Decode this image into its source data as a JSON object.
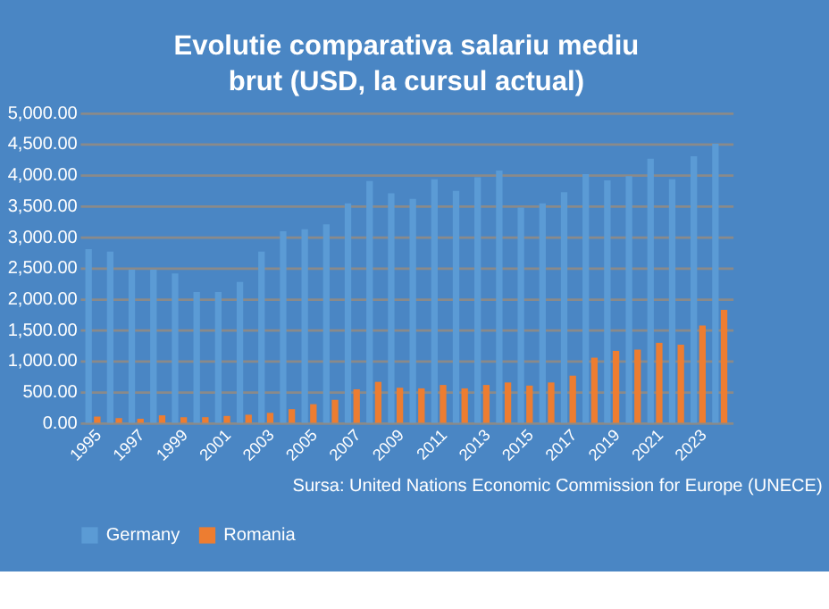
{
  "chart_data": {
    "type": "bar",
    "title": "Evolutie comparativa salariu mediu brut (USD, la cursul actual)",
    "categories": [
      "1995",
      null,
      "1997",
      null,
      "1999",
      null,
      "2001",
      null,
      "2003",
      null,
      "2005",
      null,
      "2007",
      null,
      "2009",
      null,
      "2011",
      null,
      "2013",
      null,
      "2015",
      null,
      "2017",
      null,
      "2019",
      null,
      "2021",
      null,
      "2023",
      null
    ],
    "series": [
      {
        "name": "Germany",
        "color": "#5b9bd5",
        "values": [
          2800,
          2760,
          2470,
          2470,
          2410,
          2110,
          2110,
          2270,
          2760,
          3090,
          3120,
          3200,
          3540,
          3900,
          3700,
          3610,
          3930,
          3740,
          3960,
          4070,
          3470,
          3540,
          3720,
          4010,
          3910,
          3980,
          4260,
          3930,
          4300,
          4500
        ]
      },
      {
        "name": "Romania",
        "color": "#ed7d31",
        "values": [
          100,
          75,
          65,
          120,
          90,
          90,
          110,
          130,
          160,
          220,
          300,
          370,
          540,
          660,
          565,
          555,
          610,
          555,
          610,
          650,
          600,
          650,
          760,
          1050,
          1160,
          1180,
          1290,
          1260,
          1570,
          1820
        ]
      }
    ],
    "ylim": [
      0,
      5000
    ],
    "yticks": [
      {
        "value": 0,
        "label": "0.00"
      },
      {
        "value": 500,
        "label": "500.00"
      },
      {
        "value": 1000,
        "label": "1,000.00"
      },
      {
        "value": 1500,
        "label": "1,500.00"
      },
      {
        "value": 2000,
        "label": "2,000.00"
      },
      {
        "value": 2500,
        "label": "2,500.00"
      },
      {
        "value": 3000,
        "label": "3,000.00"
      },
      {
        "value": 3500,
        "label": "3,500.00"
      },
      {
        "value": 4000,
        "label": "4,000.00"
      },
      {
        "value": 4500,
        "label": "4,500.00"
      },
      {
        "value": 5000,
        "label": "5,000.00"
      }
    ],
    "grid": "y",
    "legend": "bottom",
    "annotations": [
      "Sursa: United Nations Economic Commission for Europe (UNECE)"
    ]
  }
}
